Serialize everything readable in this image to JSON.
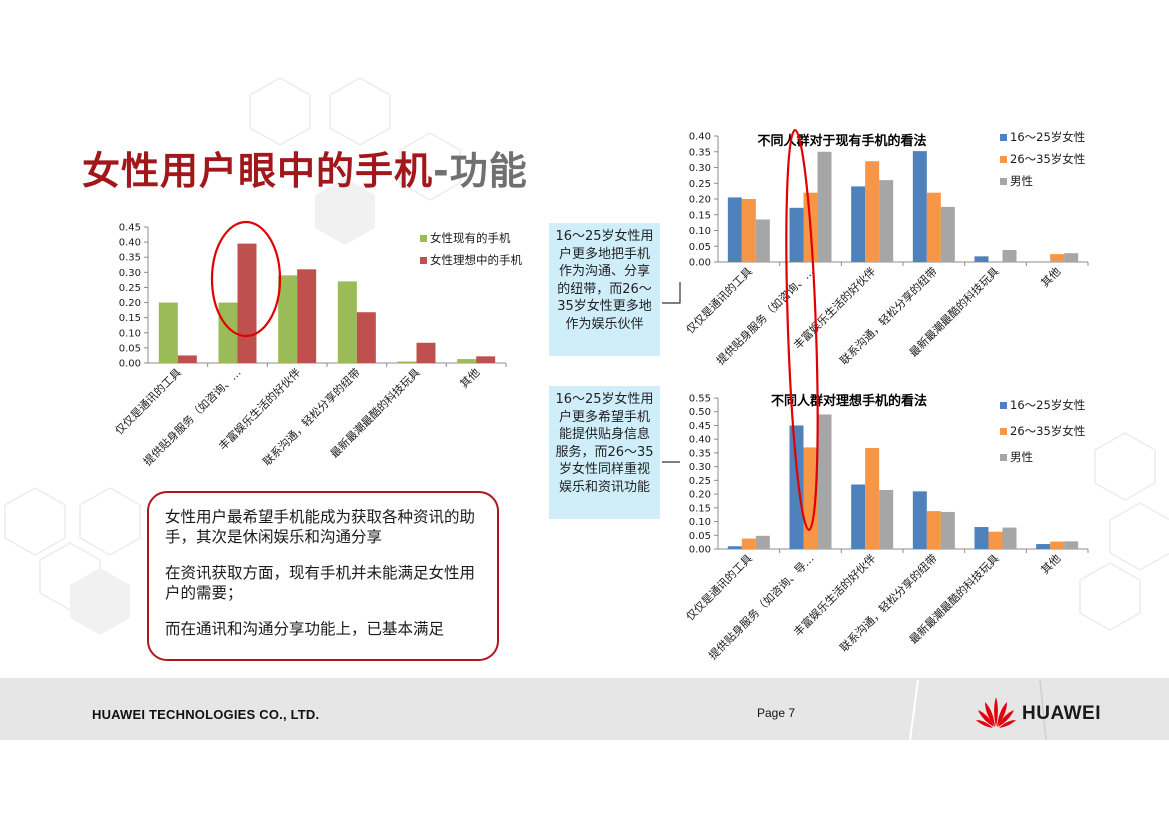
{
  "title": {
    "main": "女性用户眼中的手机",
    "sub": "-功能"
  },
  "colors": {
    "title": "#a1171c",
    "green": "#9bbb59",
    "red": "#c0504d",
    "blue": "#4f81bd",
    "orange": "#f79646",
    "gray": "#a6a6a6",
    "highlight": "#e00000",
    "callout_bg": "#cfeefa"
  },
  "callouts": {
    "top": "16～25岁女性用户更多地把手机作为沟通、分享的纽带，而26～35岁女性更多地作为娱乐伙伴",
    "bottom": "16～25岁女性用户更多希望手机能提供贴身信息服务，而26～35岁女性同样重视娱乐和资讯功能"
  },
  "summary": [
    "女性用户最希望手机能成为获取各种资讯的助手，其次是休闲娱乐和沟通分享",
    "在资讯获取方面，现有手机并未能满足女性用户的需要；",
    "而在通讯和沟通分享功能上，已基本满足"
  ],
  "footer": {
    "company": "HUAWEI TECHNOLOGIES CO., LTD.",
    "page": "Page 7",
    "brand": "HUAWEI"
  },
  "chart_data": [
    {
      "id": "left",
      "type": "bar",
      "title": "",
      "categories": [
        "仅仅是通讯的工具",
        "提供贴身服务（如咨询、…",
        "丰富娱乐生活的好伙伴",
        "联系沟通，轻松分享的纽带",
        "最新最潮最酷的科技玩具",
        "其他"
      ],
      "series": [
        {
          "name": "女性现有的手机",
          "color": "#9bbb59",
          "values": [
            0.2,
            0.2,
            0.29,
            0.27,
            0.005,
            0.013
          ]
        },
        {
          "name": "女性理想中的手机",
          "color": "#c0504d",
          "values": [
            0.025,
            0.395,
            0.31,
            0.168,
            0.067,
            0.022
          ]
        }
      ],
      "ylim": [
        0,
        0.45
      ],
      "yticks": [
        "0.00",
        "0.05",
        "0.10",
        "0.15",
        "0.20",
        "0.25",
        "0.30",
        "0.35",
        "0.40",
        "0.45"
      ],
      "legend": "right",
      "highlight_category": 1
    },
    {
      "id": "top-right",
      "type": "bar",
      "title": "不同人群对于现有手机的看法",
      "categories": [
        "仅仅是通讯的工具",
        "提供贴身服务（如咨询、…",
        "丰富娱乐生活的好伙伴",
        "联系沟通，轻松分享的纽带",
        "最新最潮最酷的科技玩具",
        "其他"
      ],
      "series": [
        {
          "name": "16～25岁女性",
          "color": "#4f81bd",
          "values": [
            0.205,
            0.172,
            0.24,
            0.352,
            0.018,
            0.0
          ]
        },
        {
          "name": "26～35岁女性",
          "color": "#f79646",
          "values": [
            0.2,
            0.22,
            0.32,
            0.22,
            0.0,
            0.025
          ]
        },
        {
          "name": "男性",
          "color": "#a6a6a6",
          "values": [
            0.135,
            0.35,
            0.26,
            0.175,
            0.038,
            0.028
          ]
        }
      ],
      "ylim": [
        0,
        0.4
      ],
      "yticks": [
        "0.00",
        "0.05",
        "0.10",
        "0.15",
        "0.20",
        "0.25",
        "0.30",
        "0.35",
        "0.40"
      ],
      "legend": "right",
      "highlight_category": 1
    },
    {
      "id": "bottom-right",
      "type": "bar",
      "title": "不同人群对理想手机的看法",
      "categories": [
        "仅仅是通讯的工具",
        "提供贴身服务（如咨询、导…",
        "丰富娱乐生活的好伙伴",
        "联系沟通，轻松分享的纽带",
        "最新最潮最酷的科技玩具",
        "其他"
      ],
      "series": [
        {
          "name": "16～25岁女性",
          "color": "#4f81bd",
          "values": [
            0.01,
            0.45,
            0.235,
            0.21,
            0.08,
            0.018
          ]
        },
        {
          "name": "26～35岁女性",
          "color": "#f79646",
          "values": [
            0.038,
            0.37,
            0.368,
            0.138,
            0.063,
            0.027
          ]
        },
        {
          "name": "男性",
          "color": "#a6a6a6",
          "values": [
            0.048,
            0.49,
            0.215,
            0.135,
            0.078,
            0.028
          ]
        }
      ],
      "ylim": [
        0,
        0.55
      ],
      "yticks": [
        "0.00",
        "0.05",
        "0.10",
        "0.15",
        "0.20",
        "0.25",
        "0.30",
        "0.35",
        "0.40",
        "0.45",
        "0.50",
        "0.55"
      ],
      "legend": "right",
      "highlight_category": 1
    }
  ]
}
